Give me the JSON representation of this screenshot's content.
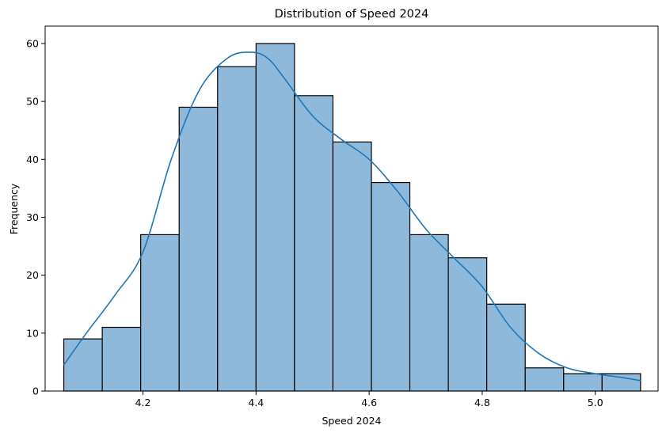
{
  "chart_data": {
    "type": "bar",
    "subtype": "histogram-with-kde",
    "title": "Distribution of Speed 2024",
    "xlabel": "Speed 2024",
    "ylabel": "Frequency",
    "xlim": [
      4.027,
      5.111
    ],
    "ylim": [
      0,
      63
    ],
    "bin_edges": [
      4.06,
      4.128,
      4.196,
      4.264,
      4.332,
      4.4,
      4.468,
      4.536,
      4.604,
      4.672,
      4.74,
      4.808,
      4.876,
      4.944,
      5.012,
      5.08
    ],
    "values": [
      9,
      11,
      27,
      49,
      56,
      60,
      51,
      43,
      36,
      27,
      23,
      15,
      4,
      3,
      3
    ],
    "x_ticks": [
      4.2,
      4.4,
      4.6,
      4.8,
      5.0
    ],
    "x_tick_labels": [
      "4.2",
      "4.4",
      "4.6",
      "4.8",
      "5.0"
    ],
    "y_ticks": [
      0,
      10,
      20,
      30,
      40,
      50,
      60
    ],
    "y_tick_labels": [
      "0",
      "10",
      "20",
      "30",
      "40",
      "50",
      "60"
    ],
    "kde_curve": {
      "x": [
        4.06,
        4.1,
        4.15,
        4.2,
        4.25,
        4.3,
        4.35,
        4.39,
        4.42,
        4.45,
        4.5,
        4.55,
        4.6,
        4.65,
        4.7,
        4.75,
        4.8,
        4.85,
        4.9,
        4.95,
        5.0,
        5.05,
        5.08
      ],
      "y": [
        4.5,
        10,
        16.5,
        24,
        40,
        52,
        57.5,
        58.5,
        57.5,
        54,
        47.5,
        43.5,
        40,
        34.5,
        28,
        23,
        18,
        11,
        6.5,
        4,
        3,
        2.3,
        1.8
      ]
    },
    "grid": false,
    "colors": {
      "bar_fill": "#8fb9db",
      "bar_edge": "#000000",
      "kde_line": "#1f77b4"
    }
  }
}
